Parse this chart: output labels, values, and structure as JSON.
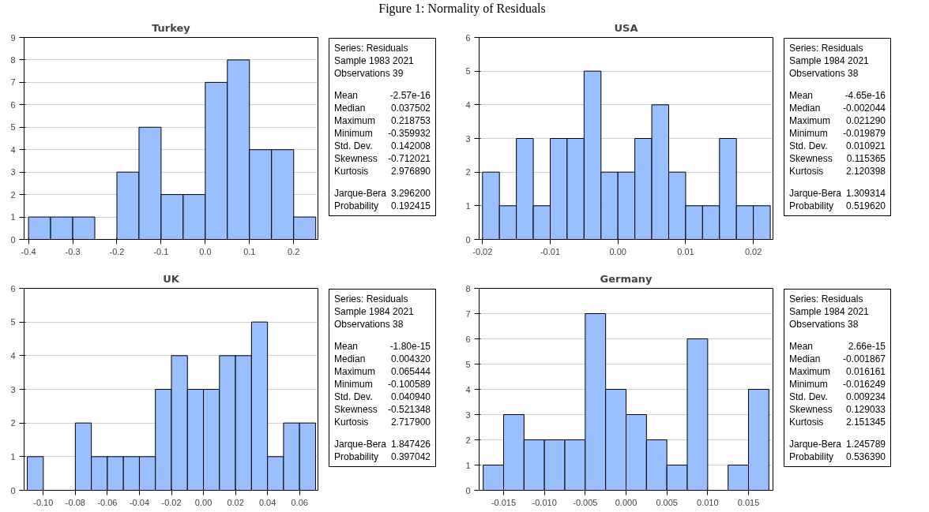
{
  "chart_data": [
    {
      "type": "other",
      "title": "Figure 1: Normality of Residuals"
    },
    {
      "type": "histogram",
      "title": "Turkey",
      "color": "#99bfff",
      "grid": "y",
      "bins": [
        -0.4,
        -0.35,
        -0.3,
        -0.25,
        -0.2,
        -0.15,
        -0.1,
        -0.05,
        0.0,
        0.05,
        0.1,
        0.15,
        0.2,
        0.25
      ],
      "values": [
        1,
        1,
        1,
        0,
        3,
        5,
        2,
        2,
        7,
        8,
        4,
        4,
        1
      ],
      "xlim": [
        -0.41,
        0.255
      ],
      "xticks": [
        {
          "value": -0.4,
          "label": "-0.4"
        },
        {
          "value": -0.3,
          "label": "-0.3"
        },
        {
          "value": -0.2,
          "label": "-0.2"
        },
        {
          "value": -0.1,
          "label": "-0.1"
        },
        {
          "value": 0.0,
          "label": "0.0"
        },
        {
          "value": 0.1,
          "label": "0.1"
        },
        {
          "value": 0.2,
          "label": "0.2"
        }
      ],
      "ylim": [
        0,
        9
      ],
      "yticks": [
        0,
        1,
        2,
        3,
        4,
        5,
        6,
        7,
        8,
        9
      ],
      "annotations": [
        "Series: Residuals",
        "Sample 1983 2021",
        "Observations 39",
        "Mean -2.57e-16",
        "Median 0.037502",
        "Maximum 0.218753",
        "Minimum -0.359932",
        "Std. Dev. 0.142008",
        "Skewness -0.712021",
        "Kurtosis 2.976890",
        "Jarque-Bera 3.296200",
        "Probability 0.192415"
      ]
    },
    {
      "type": "histogram",
      "title": "USA",
      "color": "#99bfff",
      "grid": "y",
      "bins": [
        -0.02,
        -0.0175,
        -0.015,
        -0.0125,
        -0.01,
        -0.0075,
        -0.005,
        -0.0025,
        0.0,
        0.0025,
        0.005,
        0.0075,
        0.01,
        0.0125,
        0.015,
        0.0175,
        0.02,
        0.0225
      ],
      "values": [
        2,
        1,
        3,
        1,
        3,
        3,
        5,
        2,
        2,
        3,
        4,
        2,
        1,
        1,
        3,
        1,
        1
      ],
      "xlim": [
        -0.0205,
        0.0229
      ],
      "xticks": [
        {
          "value": -0.02,
          "label": "-0.02"
        },
        {
          "value": -0.01,
          "label": "-0.01"
        },
        {
          "value": 0.0,
          "label": "0.00"
        },
        {
          "value": 0.01,
          "label": "0.01"
        },
        {
          "value": 0.02,
          "label": "0.02"
        }
      ],
      "ylim": [
        0,
        6
      ],
      "yticks": [
        0,
        1,
        2,
        3,
        4,
        5,
        6
      ],
      "annotations": [
        "Series: Residuals",
        "Sample 1984 2021",
        "Observations 38",
        "Mean -4.65e-16",
        "Median -0.002044",
        "Maximum 0.021290",
        "Minimum -0.019879",
        "Std. Dev. 0.010921",
        "Skewness 0.115365",
        "Kurtosis 2.120398",
        "Jarque-Bera 1.309314",
        "Probability 0.519620"
      ]
    },
    {
      "type": "histogram",
      "title": "UK",
      "color": "#99bfff",
      "grid": "y",
      "bins": [
        -0.11,
        -0.1,
        -0.09,
        -0.08,
        -0.07,
        -0.06,
        -0.05,
        -0.04,
        -0.03,
        -0.02,
        -0.01,
        0.0,
        0.01,
        0.02,
        0.03,
        0.04,
        0.05,
        0.06,
        0.07
      ],
      "values": [
        1,
        0,
        0,
        2,
        1,
        1,
        1,
        1,
        3,
        4,
        3,
        3,
        4,
        4,
        5,
        1,
        2,
        2
      ],
      "xlim": [
        -0.112,
        0.0715
      ],
      "xticks": [
        {
          "value": -0.1,
          "label": "-0.10"
        },
        {
          "value": -0.08,
          "label": "-0.08"
        },
        {
          "value": -0.06,
          "label": "-0.06"
        },
        {
          "value": -0.04,
          "label": "-0.04"
        },
        {
          "value": -0.02,
          "label": "-0.02"
        },
        {
          "value": 0.0,
          "label": "0.00"
        },
        {
          "value": 0.02,
          "label": "0.02"
        },
        {
          "value": 0.04,
          "label": "0.04"
        },
        {
          "value": 0.06,
          "label": "0.06"
        }
      ],
      "ylim": [
        0,
        6
      ],
      "yticks": [
        0,
        1,
        2,
        3,
        4,
        5,
        6
      ],
      "annotations": [
        "Series: Residuals",
        "Sample 1984 2021",
        "Observations 38",
        "Mean -1.80e-15",
        "Median 0.004320",
        "Maximum 0.065444",
        "Minimum -0.100589",
        "Std. Dev. 0.040940",
        "Skewness -0.521348",
        "Kurtosis 2.717900",
        "Jarque-Bera 1.847426",
        "Probability 0.397042"
      ]
    },
    {
      "type": "histogram",
      "title": "Germany",
      "color": "#99bfff",
      "grid": "y",
      "bins": [
        -0.0175,
        -0.015,
        -0.0125,
        -0.01,
        -0.0075,
        -0.005,
        -0.0025,
        0.0,
        0.0025,
        0.005,
        0.0075,
        0.01,
        0.0125,
        0.015,
        0.0175
      ],
      "values": [
        1,
        3,
        2,
        2,
        2,
        7,
        4,
        3,
        2,
        1,
        6,
        0,
        1,
        4
      ],
      "xlim": [
        -0.018,
        0.018
      ],
      "xticks": [
        {
          "value": -0.015,
          "label": "-0.015"
        },
        {
          "value": -0.01,
          "label": "-0.010"
        },
        {
          "value": -0.005,
          "label": "-0.005"
        },
        {
          "value": 0.0,
          "label": "0.000"
        },
        {
          "value": 0.005,
          "label": "0.005"
        },
        {
          "value": 0.01,
          "label": "0.010"
        },
        {
          "value": 0.015,
          "label": "0.015"
        }
      ],
      "ylim": [
        0,
        8
      ],
      "yticks": [
        0,
        1,
        2,
        3,
        4,
        5,
        6,
        7,
        8
      ],
      "annotations": [
        "Series: Residuals",
        "Sample 1984 2021",
        "Observations 38",
        "Mean 2.66e-15",
        "Median -0.001867",
        "Maximum 0.016161",
        "Minimum -0.016249",
        "Std. Dev. 0.009234",
        "Skewness 0.129033",
        "Kurtosis 2.151345",
        "Jarque-Bera 1.245789",
        "Probability 0.536390"
      ]
    }
  ]
}
